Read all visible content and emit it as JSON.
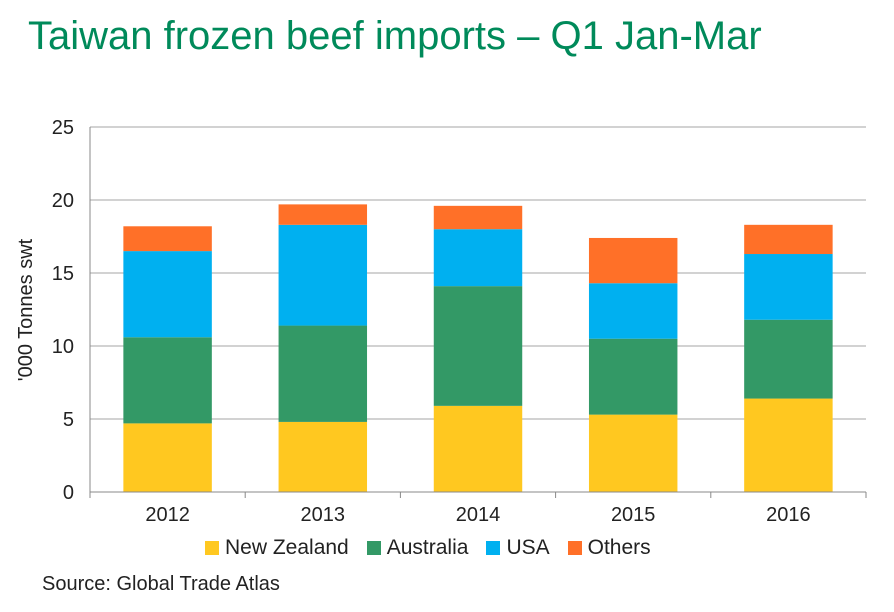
{
  "chart_data": {
    "type": "bar",
    "stacked": true,
    "title": "Taiwan frozen beef imports – Q1 Jan-Mar",
    "ylabel": "'000 Tonnes swt",
    "ylim": [
      0,
      25
    ],
    "yticks": [
      "0",
      "5",
      "10",
      "15",
      "20",
      "25"
    ],
    "categories": [
      "2012",
      "2013",
      "2014",
      "2015",
      "2016"
    ],
    "series": [
      {
        "name": "New Zealand",
        "color": "#FFC820",
        "values": [
          4.7,
          4.8,
          5.9,
          5.3,
          6.4
        ]
      },
      {
        "name": "Australia",
        "color": "#339966",
        "values": [
          5.9,
          6.6,
          8.2,
          5.2,
          5.4
        ]
      },
      {
        "name": "USA",
        "color": "#00B0F0",
        "values": [
          5.9,
          6.9,
          3.9,
          3.8,
          4.5
        ]
      },
      {
        "name": "Others",
        "color": "#FF7028",
        "values": [
          1.7,
          1.4,
          1.6,
          3.1,
          2.0
        ]
      }
    ],
    "grid": true,
    "legend": "bottom",
    "source": "Source: Global Trade Atlas"
  }
}
